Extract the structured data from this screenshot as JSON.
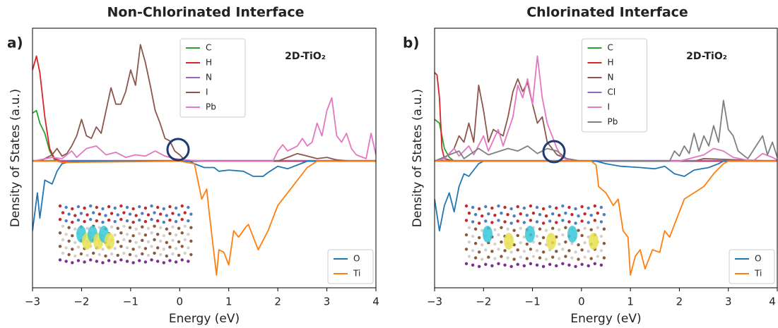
{
  "chart_data": [
    {
      "type": "line",
      "title": "Non-Chlorinated Interface",
      "panel_label": "a)",
      "annotation": "2D-TiO₂",
      "xlabel": "Energy (eV)",
      "ylabel": "Density of States (a.u.)",
      "xlim": [
        -3,
        4
      ],
      "ylim": [
        -1,
        1.05
      ],
      "xticks": [
        {
          "value": -3,
          "label": "−3"
        },
        {
          "value": -2,
          "label": "−2"
        },
        {
          "value": -1,
          "label": "−1"
        },
        0,
        1,
        2,
        3,
        4
      ],
      "series": [
        {
          "name": "C",
          "color": "#2ca02c",
          "legend": "upper center",
          "x": [
            -3,
            -2.92,
            -2.85,
            -2.75,
            -2.65,
            -2.55,
            -2.4,
            4
          ],
          "values": [
            0.38,
            0.4,
            0.3,
            0.22,
            0.08,
            0.01,
            0,
            0
          ]
        },
        {
          "name": "H",
          "color": "#d62728",
          "legend": "upper center",
          "x": [
            -3,
            -2.92,
            -2.85,
            -2.75,
            -2.65,
            -2.55,
            -2.4,
            4
          ],
          "values": [
            0.72,
            0.83,
            0.7,
            0.35,
            0.1,
            0.02,
            0,
            0
          ]
        },
        {
          "name": "N",
          "color": "#9467bd",
          "legend": "upper center",
          "x": [
            -3,
            4
          ],
          "values": [
            0.005,
            0.005
          ]
        },
        {
          "name": "I",
          "color": "#8c564b",
          "legend": "upper center",
          "x": [
            -3,
            -2.8,
            -2.6,
            -2.5,
            -2.4,
            -2.3,
            -2.2,
            -2.1,
            -2.0,
            -1.9,
            -1.8,
            -1.7,
            -1.6,
            -1.5,
            -1.4,
            -1.3,
            -1.2,
            -1.1,
            -1.0,
            -0.9,
            -0.8,
            -0.7,
            -0.6,
            -0.5,
            -0.4,
            -0.3,
            -0.2,
            -0.1,
            0,
            0.1,
            0.3,
            2.0,
            2.2,
            2.4,
            2.6,
            2.8,
            3.0,
            3.2,
            3.5,
            4
          ],
          "values": [
            0,
            0.01,
            0.05,
            0.1,
            0.04,
            0.06,
            0.12,
            0.2,
            0.33,
            0.2,
            0.18,
            0.27,
            0.22,
            0.4,
            0.58,
            0.45,
            0.45,
            0.55,
            0.72,
            0.6,
            0.92,
            0.78,
            0.6,
            0.4,
            0.3,
            0.18,
            0.16,
            0.08,
            0.05,
            0.01,
            0,
            0,
            0.03,
            0.06,
            0.04,
            0.02,
            0.03,
            0.01,
            0,
            0
          ]
        },
        {
          "name": "Pb",
          "color": "#e377c2",
          "legend": "upper center",
          "x": [
            -3,
            -2.6,
            -2.4,
            -2.2,
            -2.1,
            -1.9,
            -1.7,
            -1.5,
            -1.3,
            -1.1,
            -0.9,
            -0.7,
            -0.5,
            -0.3,
            -0.1,
            0.1,
            0.5,
            1.9,
            2.0,
            2.1,
            2.2,
            2.4,
            2.5,
            2.6,
            2.7,
            2.8,
            2.9,
            3.0,
            3.1,
            3.2,
            3.3,
            3.4,
            3.5,
            3.6,
            3.8,
            3.9,
            4
          ],
          "values": [
            0,
            0.03,
            0.02,
            0.08,
            0.03,
            0.1,
            0.12,
            0.05,
            0.07,
            0.03,
            0.05,
            0.04,
            0.08,
            0.04,
            0.02,
            0.01,
            0,
            0,
            0.08,
            0.13,
            0.08,
            0.12,
            0.18,
            0.12,
            0.15,
            0.3,
            0.2,
            0.4,
            0.5,
            0.2,
            0.15,
            0.22,
            0.1,
            0.05,
            0.02,
            0.22,
            0.05
          ]
        },
        {
          "name": "O",
          "color": "#1f77b4",
          "legend": "lower right",
          "x": [
            -3,
            -2.9,
            -2.85,
            -2.75,
            -2.6,
            -2.5,
            -2.4,
            -2.2,
            0.2,
            0.3,
            0.5,
            0.7,
            0.8,
            1.0,
            1.3,
            1.5,
            1.7,
            1.8,
            2.0,
            2.2,
            2.4,
            2.6,
            4
          ],
          "values": [
            -0.55,
            -0.25,
            -0.45,
            -0.15,
            -0.18,
            -0.08,
            -0.02,
            0,
            0,
            -0.02,
            -0.05,
            -0.05,
            -0.08,
            -0.07,
            -0.08,
            -0.12,
            -0.12,
            -0.09,
            -0.04,
            -0.06,
            -0.03,
            0,
            0
          ]
        },
        {
          "name": "Ti",
          "color": "#ff7f0e",
          "legend": "lower right",
          "x": [
            -3,
            -2.5,
            -2.4,
            0,
            0.3,
            0.45,
            0.55,
            0.6,
            0.75,
            0.8,
            0.9,
            1.0,
            1.1,
            1.2,
            1.35,
            1.4,
            1.6,
            1.8,
            2.0,
            2.2,
            2.4,
            2.6,
            2.8,
            4
          ],
          "values": [
            0,
            0,
            -0.01,
            0,
            -0.02,
            -0.3,
            -0.22,
            -0.4,
            -0.9,
            -0.7,
            -0.72,
            -0.82,
            -0.55,
            -0.6,
            -0.52,
            -0.5,
            -0.7,
            -0.55,
            -0.35,
            -0.25,
            -0.15,
            -0.05,
            0,
            0
          ]
        }
      ]
    },
    {
      "type": "line",
      "title": "Chlorinated Interface",
      "panel_label": "b)",
      "annotation": "2D-TiO₂",
      "xlabel": "Energy (eV)",
      "ylabel": "Density of States (a.u.)",
      "xlim": [
        -3,
        4
      ],
      "ylim": [
        -1,
        1.05
      ],
      "xticks": [
        {
          "value": -3,
          "label": "−3"
        },
        {
          "value": -2,
          "label": "−2"
        },
        {
          "value": -1,
          "label": "−1"
        },
        0,
        1,
        2,
        3,
        4
      ],
      "series": [
        {
          "name": "C",
          "color": "#2ca02c",
          "legend": "upper center",
          "x": [
            -3,
            -2.9,
            -2.8,
            -2.7,
            -2.6,
            4
          ],
          "values": [
            0.33,
            0.3,
            0.1,
            0.03,
            0,
            0
          ]
        },
        {
          "name": "H",
          "color": "#d62728",
          "legend": "upper center",
          "x": [
            -3,
            -2.95,
            -2.9,
            -2.85,
            -2.8,
            -2.6,
            4
          ],
          "values": [
            0.7,
            0.68,
            0.5,
            0.1,
            0.02,
            0,
            0
          ]
        },
        {
          "name": "N",
          "color": "#8c564b",
          "legend": "upper center",
          "x": [
            -3,
            -2.8,
            -2.6,
            -2.5,
            -2.4,
            -2.3,
            -2.2,
            -2.1,
            -2.0,
            -1.9,
            -1.8,
            -1.6,
            -1.5,
            -1.4,
            -1.3,
            -1.2,
            -1.1,
            -1.0,
            -0.9,
            -0.8,
            -0.7,
            -0.6,
            -0.5,
            -0.3,
            0,
            2.3,
            2.5,
            4
          ],
          "values": [
            0,
            0.02,
            0.1,
            0.2,
            0.15,
            0.3,
            0.15,
            0.6,
            0.4,
            0.15,
            0.25,
            0.2,
            0.35,
            0.55,
            0.65,
            0.55,
            0.62,
            0.45,
            0.3,
            0.35,
            0.15,
            0.1,
            0.05,
            0.02,
            0,
            0,
            0.02,
            0
          ]
        },
        {
          "name": "Cl",
          "color": "#9467bd",
          "legend": "upper center",
          "x": [
            -3,
            4
          ],
          "values": [
            0.005,
            0.005
          ]
        },
        {
          "name": "I",
          "color": "#e377c2",
          "legend": "upper center",
          "x": [
            -3,
            -2.8,
            -2.6,
            -2.5,
            -2.3,
            -2.2,
            -2.0,
            -1.9,
            -1.7,
            -1.6,
            -1.4,
            -1.3,
            -1.2,
            -1.1,
            -1.0,
            -0.9,
            -0.8,
            -0.7,
            -0.6,
            -0.5,
            -0.4,
            -0.2,
            2.0,
            2.3,
            2.5,
            2.7,
            2.9,
            3.1,
            3.5,
            3.7,
            3.9,
            4
          ],
          "values": [
            0,
            0.02,
            0.1,
            0.04,
            0.12,
            0.05,
            0.2,
            0.08,
            0.25,
            0.12,
            0.35,
            0.6,
            0.5,
            0.65,
            0.45,
            0.83,
            0.5,
            0.3,
            0.2,
            0.1,
            0.03,
            0,
            0,
            0.03,
            0.05,
            0.1,
            0.08,
            0.03,
            0,
            0.06,
            0.03,
            0.01
          ]
        },
        {
          "name": "Pb",
          "color": "#7f7f7f",
          "legend": "upper center",
          "x": [
            -3,
            -2.7,
            -2.5,
            -2.4,
            -2.1,
            -1.9,
            -1.5,
            -1.3,
            -1.1,
            -0.9,
            -0.7,
            -0.5,
            -0.3,
            0,
            1.8,
            1.9,
            2.0,
            2.1,
            2.2,
            2.3,
            2.4,
            2.5,
            2.6,
            2.7,
            2.8,
            2.9,
            3.0,
            3.1,
            3.2,
            3.4,
            3.7,
            3.8,
            3.9,
            4
          ],
          "values": [
            0,
            0.05,
            0.08,
            0.02,
            0.1,
            0.05,
            0.1,
            0.08,
            0.12,
            0.06,
            0.1,
            0.08,
            0.02,
            0,
            0,
            0.08,
            0.04,
            0.12,
            0.06,
            0.22,
            0.08,
            0.2,
            0.12,
            0.28,
            0.15,
            0.48,
            0.25,
            0.2,
            0.08,
            0.02,
            0.2,
            0.05,
            0.15,
            0.03
          ]
        },
        {
          "name": "O",
          "color": "#1f77b4",
          "legend": "lower right",
          "x": [
            -3,
            -2.9,
            -2.8,
            -2.7,
            -2.6,
            -2.5,
            -2.4,
            -2.3,
            -2.1,
            -2.0,
            0.3,
            0.5,
            0.8,
            1.2,
            1.5,
            1.7,
            1.9,
            2.1,
            2.3,
            2.6,
            2.8,
            2.9,
            4
          ],
          "values": [
            -0.3,
            -0.55,
            -0.35,
            -0.25,
            -0.4,
            -0.2,
            -0.1,
            -0.12,
            -0.02,
            0,
            0,
            -0.02,
            -0.04,
            -0.05,
            -0.06,
            -0.04,
            -0.1,
            -0.12,
            -0.07,
            -0.05,
            -0.02,
            0,
            0
          ]
        },
        {
          "name": "Ti",
          "color": "#ff7f0e",
          "legend": "lower right",
          "x": [
            -3,
            0.2,
            0.3,
            0.35,
            0.5,
            0.65,
            0.75,
            0.85,
            0.95,
            1.0,
            1.1,
            1.2,
            1.3,
            1.45,
            1.6,
            1.7,
            1.8,
            1.9,
            2.1,
            2.3,
            2.5,
            2.7,
            2.9,
            3.0,
            4
          ],
          "values": [
            0,
            0,
            -0.03,
            -0.2,
            -0.25,
            -0.35,
            -0.3,
            -0.55,
            -0.6,
            -0.9,
            -0.75,
            -0.7,
            -0.85,
            -0.7,
            -0.72,
            -0.55,
            -0.6,
            -0.5,
            -0.3,
            -0.25,
            -0.2,
            -0.1,
            -0.02,
            0,
            0
          ]
        }
      ]
    }
  ]
}
